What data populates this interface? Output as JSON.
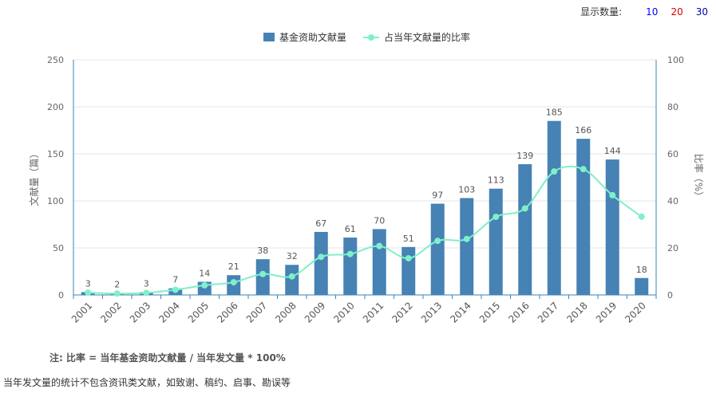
{
  "display_count": {
    "label": "显示数量:",
    "options": [
      {
        "text": "10",
        "color": "#0000ff"
      },
      {
        "text": "20",
        "color": "#d40000"
      },
      {
        "text": "30",
        "color": "#0000aa"
      }
    ]
  },
  "note": "注: 比率 = 当年基金资助文献量 / 当年发文量 * 100%",
  "footnote": "当年发文量的统计不包含资讯类文献，如致谢、稿约、启事、勘误等",
  "colors": {
    "bar": "#4682b4",
    "line": "#7ff0c8",
    "axis": "#3a86b8"
  },
  "chart_data": {
    "type": "bar",
    "categories": [
      "2001",
      "2002",
      "2003",
      "2004",
      "2005",
      "2006",
      "2007",
      "2008",
      "2009",
      "2010",
      "2011",
      "2012",
      "2013",
      "2014",
      "2015",
      "2016",
      "2017",
      "2018",
      "2019",
      "2020"
    ],
    "series": [
      {
        "name": "基金资助文献量",
        "type": "bar",
        "axis": "left",
        "values": [
          3,
          2,
          3,
          7,
          14,
          21,
          38,
          32,
          67,
          61,
          70,
          51,
          97,
          103,
          113,
          139,
          185,
          166,
          144,
          18
        ]
      },
      {
        "name": "占当年文献量的比率",
        "type": "line",
        "axis": "right",
        "values": [
          1.0,
          0.6,
          0.9,
          2.2,
          4.1,
          5.4,
          8.9,
          7.9,
          16.2,
          17.4,
          20.8,
          15.6,
          23.0,
          23.8,
          33.2,
          36.8,
          52.5,
          53.5,
          42.4,
          33.3
        ]
      }
    ],
    "ylabel_left": "文献量（篇）",
    "ylabel_right": "比率（%）",
    "ylim_left": [
      0,
      250
    ],
    "ylim_right": [
      0,
      100
    ],
    "yticks_left": [
      0,
      50,
      100,
      150,
      200,
      250
    ],
    "yticks_right": [
      0,
      20,
      40,
      60,
      80,
      100
    ],
    "grid": true,
    "legend_position": "top-center",
    "x_tick_rotation": -45
  }
}
